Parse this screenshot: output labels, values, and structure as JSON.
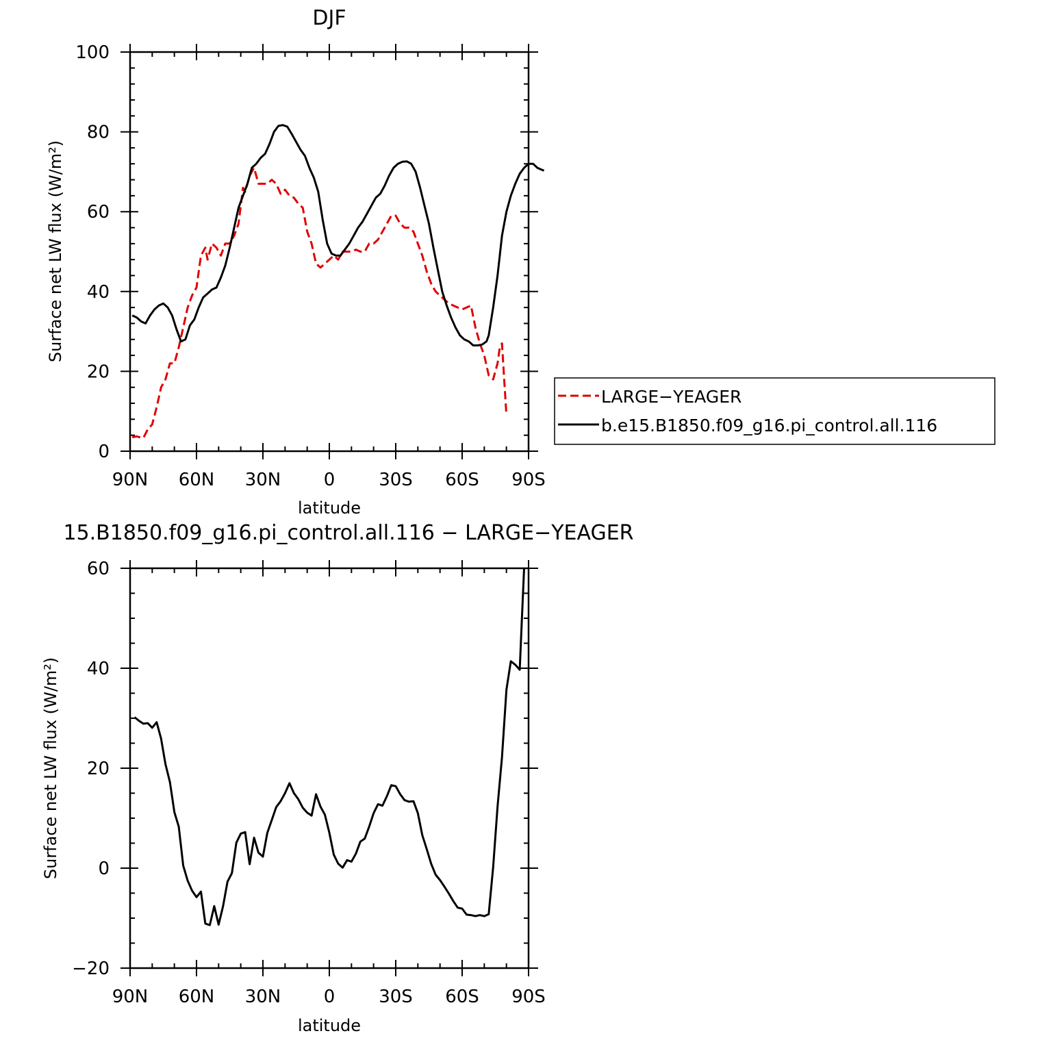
{
  "chart_data": [
    {
      "type": "line",
      "title": "DJF",
      "xlabel": "latitude",
      "ylabel": "Surface net LW flux (W/m²)",
      "xlim": [
        90,
        -90
      ],
      "ylim": [
        0,
        100
      ],
      "x_ticks": [
        90,
        60,
        30,
        0,
        -30,
        -60,
        -90
      ],
      "x_tick_labels": [
        "90N",
        "60N",
        "30N",
        "0",
        "30S",
        "60S",
        "90S"
      ],
      "y_ticks": [
        0,
        20,
        40,
        60,
        80,
        100
      ],
      "y_tick_labels": [
        "0",
        "20",
        "40",
        "60",
        "80",
        "100"
      ],
      "legend_position": "right",
      "series": [
        {
          "name": "LARGE−YEAGER",
          "color": "#e00000",
          "dash": "dashed",
          "points": [
            [
              89,
              3.5
            ],
            [
              87,
              3.7
            ],
            [
              85,
              3.4
            ],
            [
              84,
              3.3
            ],
            [
              82,
              5.5
            ],
            [
              80,
              6.7
            ],
            [
              78,
              11
            ],
            [
              76,
              16
            ],
            [
              74,
              18
            ],
            [
              72,
              22
            ],
            [
              70,
              22
            ],
            [
              68,
              26
            ],
            [
              66,
              31
            ],
            [
              64,
              36
            ],
            [
              62,
              39
            ],
            [
              60,
              41
            ],
            [
              58,
              49
            ],
            [
              56,
              51
            ],
            [
              55,
              48
            ],
            [
              53,
              52
            ],
            [
              51,
              51
            ],
            [
              49,
              49
            ],
            [
              47,
              52
            ],
            [
              45,
              52
            ],
            [
              43,
              54
            ],
            [
              41,
              57
            ],
            [
              39,
              66
            ],
            [
              38,
              65
            ],
            [
              36,
              69
            ],
            [
              34,
              71
            ],
            [
              32,
              67
            ],
            [
              30,
              67
            ],
            [
              28,
              67
            ],
            [
              26,
              68
            ],
            [
              24,
              67
            ],
            [
              22,
              64.5
            ],
            [
              20,
              65.5
            ],
            [
              18,
              64
            ],
            [
              16,
              63.5
            ],
            [
              14,
              62
            ],
            [
              12,
              61
            ],
            [
              10,
              55
            ],
            [
              8,
              52
            ],
            [
              6,
              47
            ],
            [
              4,
              46
            ],
            [
              2,
              47
            ],
            [
              0,
              48
            ],
            [
              -2,
              49
            ],
            [
              -4,
              48
            ],
            [
              -6,
              50
            ],
            [
              -8,
              50
            ],
            [
              -10,
              50
            ],
            [
              -12,
              50.5
            ],
            [
              -14,
              50
            ],
            [
              -16,
              50
            ],
            [
              -18,
              52
            ],
            [
              -20,
              52
            ],
            [
              -22,
              53
            ],
            [
              -24,
              55
            ],
            [
              -26,
              57
            ],
            [
              -28,
              59
            ],
            [
              -30,
              59
            ],
            [
              -32,
              57
            ],
            [
              -34,
              56
            ],
            [
              -36,
              56
            ],
            [
              -38,
              55
            ],
            [
              -40,
              52
            ],
            [
              -42,
              49
            ],
            [
              -44,
              45
            ],
            [
              -46,
              42
            ],
            [
              -48,
              40
            ],
            [
              -50,
              39
            ],
            [
              -52,
              38
            ],
            [
              -54,
              37
            ],
            [
              -56,
              36.5
            ],
            [
              -58,
              36
            ],
            [
              -60,
              35.5
            ],
            [
              -62,
              36
            ],
            [
              -64,
              36.5
            ],
            [
              -66,
              31
            ],
            [
              -68,
              27
            ],
            [
              -70,
              24
            ],
            [
              -72,
              19
            ],
            [
              -74,
              18
            ],
            [
              -76,
              22
            ],
            [
              -77,
              26
            ],
            [
              -78,
              27
            ],
            [
              -79,
              18
            ],
            [
              -80,
              9
            ]
          ]
        },
        {
          "name": "b.e15.B1850.f09_g16.pi_control.all.116",
          "color": "#000000",
          "dash": "solid",
          "points": [
            [
              89,
              34
            ],
            [
              87,
              33.5
            ],
            [
              85,
              32.5
            ],
            [
              83,
              32
            ],
            [
              81,
              34
            ],
            [
              79,
              35.5
            ],
            [
              77,
              36.5
            ],
            [
              75,
              37
            ],
            [
              73,
              36
            ],
            [
              71,
              34
            ],
            [
              69,
              30.5
            ],
            [
              67,
              27.5
            ],
            [
              65,
              28
            ],
            [
              63,
              31.5
            ],
            [
              61,
              33
            ],
            [
              59,
              36
            ],
            [
              57,
              38.5
            ],
            [
              55,
              39.5
            ],
            [
              53,
              40.5
            ],
            [
              51,
              41
            ],
            [
              49,
              43.5
            ],
            [
              47,
              46.5
            ],
            [
              45,
              51
            ],
            [
              43,
              56
            ],
            [
              41,
              61
            ],
            [
              39,
              64
            ],
            [
              37,
              67
            ],
            [
              35,
              71
            ],
            [
              33,
              72
            ],
            [
              31,
              73.5
            ],
            [
              29,
              74.5
            ],
            [
              27,
              77
            ],
            [
              25,
              80
            ],
            [
              23,
              81.5
            ],
            [
              21,
              81.7
            ],
            [
              19,
              81.3
            ],
            [
              17,
              79.5
            ],
            [
              15,
              77.5
            ],
            [
              13,
              75.5
            ],
            [
              11,
              74
            ],
            [
              9,
              71
            ],
            [
              7,
              68.5
            ],
            [
              5,
              65
            ],
            [
              3,
              58
            ],
            [
              1,
              52
            ],
            [
              -1,
              49.5
            ],
            [
              -3,
              49
            ],
            [
              -5,
              49
            ],
            [
              -7,
              50.5
            ],
            [
              -9,
              52
            ],
            [
              -11,
              54
            ],
            [
              -13,
              56
            ],
            [
              -15,
              57.5
            ],
            [
              -17,
              59.5
            ],
            [
              -19,
              61.5
            ],
            [
              -21,
              63.5
            ],
            [
              -23,
              64.5
            ],
            [
              -25,
              66.5
            ],
            [
              -27,
              69
            ],
            [
              -29,
              71
            ],
            [
              -31,
              72
            ],
            [
              -33,
              72.5
            ],
            [
              -35,
              72.6
            ],
            [
              -37,
              72
            ],
            [
              -39,
              70
            ],
            [
              -41,
              66
            ],
            [
              -43,
              61.5
            ],
            [
              -45,
              57
            ],
            [
              -47,
              51
            ],
            [
              -49,
              45.5
            ],
            [
              -51,
              40
            ],
            [
              -53,
              36.5
            ],
            [
              -55,
              33.5
            ],
            [
              -57,
              31
            ],
            [
              -59,
              29
            ],
            [
              -61,
              28
            ],
            [
              -63,
              27.5
            ],
            [
              -65,
              26.5
            ],
            [
              -67,
              26.5
            ],
            [
              -69,
              26.7
            ],
            [
              -71,
              27.5
            ],
            [
              -72,
              29
            ],
            [
              -74,
              36
            ],
            [
              -76,
              44
            ],
            [
              -78,
              54
            ],
            [
              -80,
              60
            ],
            [
              -82,
              64
            ],
            [
              -84,
              67
            ],
            [
              -86,
              69.5
            ],
            [
              -88,
              71
            ],
            [
              -90,
              72
            ],
            [
              -92,
              72
            ],
            [
              -94,
              71
            ],
            [
              -96,
              70.5
            ],
            [
              -97,
              70.3
            ]
          ]
        }
      ]
    },
    {
      "type": "line",
      "title": "15.B1850.f09_g16.pi_control.all.116 − LARGE−YEAGER",
      "xlabel": "latitude",
      "ylabel": "Surface net LW flux (W/m²)",
      "xlim": [
        90,
        -90
      ],
      "ylim": [
        -20,
        60
      ],
      "x_ticks": [
        90,
        60,
        30,
        0,
        -30,
        -60,
        -90
      ],
      "x_tick_labels": [
        "90N",
        "60N",
        "30N",
        "0",
        "30S",
        "60S",
        "90S"
      ],
      "y_ticks": [
        -20,
        0,
        20,
        40,
        60
      ],
      "y_tick_labels": [
        "−20",
        "0",
        "20",
        "40",
        "60"
      ],
      "series": [
        {
          "color": "#000000",
          "dash": "solid",
          "points": [
            [
              88,
              30.2
            ],
            [
              86,
              29.5
            ],
            [
              84,
              28.9
            ],
            [
              82,
              29
            ],
            [
              80,
              28.1
            ],
            [
              78,
              29.2
            ],
            [
              76,
              25.9
            ],
            [
              74,
              20.8
            ],
            [
              72,
              17.2
            ],
            [
              70,
              11.2
            ],
            [
              68,
              8.3
            ],
            [
              66,
              0.5
            ],
            [
              64,
              -2.5
            ],
            [
              62,
              -4.5
            ],
            [
              60,
              -5.8
            ],
            [
              58,
              -4.7
            ],
            [
              56,
              -11.1
            ],
            [
              54,
              -11.4
            ],
            [
              52,
              -7.6
            ],
            [
              50,
              -11.3
            ],
            [
              48,
              -7.6
            ],
            [
              46,
              -2.7
            ],
            [
              44,
              -1
            ],
            [
              42,
              5.1
            ],
            [
              40,
              6.9
            ],
            [
              38,
              7.2
            ],
            [
              36,
              0.8
            ],
            [
              34,
              6.1
            ],
            [
              32,
              3.1
            ],
            [
              30,
              2.3
            ],
            [
              28,
              7.1
            ],
            [
              26,
              9.6
            ],
            [
              24,
              12.2
            ],
            [
              22,
              13.4
            ],
            [
              20,
              15
            ],
            [
              18,
              17
            ],
            [
              16,
              15
            ],
            [
              14,
              13.8
            ],
            [
              12,
              12.1
            ],
            [
              10,
              11.1
            ],
            [
              8,
              10.5
            ],
            [
              6,
              14.8
            ],
            [
              4,
              12.3
            ],
            [
              2,
              10.7
            ],
            [
              0,
              7.1
            ],
            [
              -2,
              2.7
            ],
            [
              -4,
              0.9
            ],
            [
              -6,
              0.1
            ],
            [
              -8,
              1.6
            ],
            [
              -10,
              1.3
            ],
            [
              -12,
              2.9
            ],
            [
              -14,
              5.3
            ],
            [
              -16,
              5.9
            ],
            [
              -18,
              8.3
            ],
            [
              -20,
              11
            ],
            [
              -22,
              12.8
            ],
            [
              -24,
              12.5
            ],
            [
              -26,
              14.4
            ],
            [
              -28,
              16.6
            ],
            [
              -30,
              16.4
            ],
            [
              -32,
              14.8
            ],
            [
              -34,
              13.6
            ],
            [
              -36,
              13.3
            ],
            [
              -38,
              13.4
            ],
            [
              -40,
              11
            ],
            [
              -42,
              6.6
            ],
            [
              -44,
              3.8
            ],
            [
              -46,
              0.9
            ],
            [
              -48,
              -1.3
            ],
            [
              -50,
              -2.4
            ],
            [
              -52,
              -3.7
            ],
            [
              -54,
              -5.1
            ],
            [
              -56,
              -6.6
            ],
            [
              -58,
              -7.9
            ],
            [
              -60,
              -8.1
            ],
            [
              -62,
              -9.3
            ],
            [
              -64,
              -9.4
            ],
            [
              -66,
              -9.6
            ],
            [
              -68,
              -9.4
            ],
            [
              -70,
              -9.6
            ],
            [
              -72,
              -9.2
            ],
            [
              -74,
              0.2
            ],
            [
              -76,
              12.3
            ],
            [
              -78,
              22.2
            ],
            [
              -80,
              35.7
            ],
            [
              -82,
              41.4
            ],
            [
              -84,
              40.7
            ],
            [
              -86,
              39.7
            ],
            [
              -87,
              50
            ],
            [
              -88,
              60
            ]
          ]
        }
      ]
    }
  ]
}
